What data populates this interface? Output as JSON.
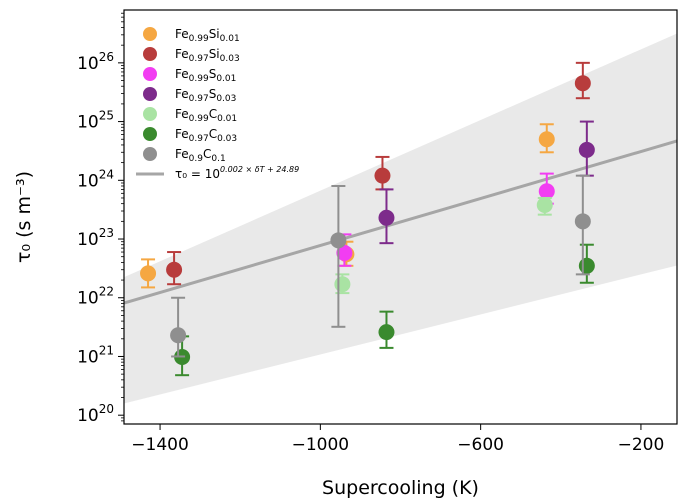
{
  "chart_data": {
    "type": "scatter",
    "xlabel": "Supercooling (K)",
    "ylabel": "τ₀ (s m⁻³)",
    "xlim": [
      -1490,
      -110
    ],
    "ylog_range": [
      19.85,
      26.9
    ],
    "y_scale": "log",
    "x_ticks": [
      -1400,
      -1000,
      -600,
      -200
    ],
    "x_tick_labels": [
      "−1400",
      "−1000",
      "−600",
      "−200"
    ],
    "y_ticks": [
      20,
      21,
      22,
      23,
      24,
      25,
      26
    ],
    "legend_position": "top-left",
    "series": [
      {
        "name": "Fe0.99Si0.01",
        "name_parts": [
          "Fe",
          "0.99",
          "Si",
          "0.01"
        ],
        "color": "#f5a742",
        "points": [
          {
            "x": -1430,
            "y": 2.6e+22,
            "err_low": 1.5e+22,
            "err_high": 4.5e+22
          },
          {
            "x": -935,
            "y": 5.5e+22,
            "err_low": 3.5e+22,
            "err_high": 9e+22
          },
          {
            "x": -435,
            "y": 5e+24,
            "err_low": 3e+24,
            "err_high": 9e+24
          }
        ]
      },
      {
        "name": "Fe0.97Si0.03",
        "name_parts": [
          "Fe",
          "0.97",
          "Si",
          "0.03"
        ],
        "color": "#b83c3c",
        "points": [
          {
            "x": -1365,
            "y": 3e+22,
            "err_low": 1.7e+22,
            "err_high": 6e+22
          },
          {
            "x": -845,
            "y": 1.2e+24,
            "err_low": 7e+23,
            "err_high": 2.5e+24
          },
          {
            "x": -345,
            "y": 4.5e+25,
            "err_low": 2.5e+25,
            "err_high": 1e+26
          }
        ]
      },
      {
        "name": "Fe0.99S0.01",
        "name_parts": [
          "Fe",
          "0.99",
          "S",
          "0.01"
        ],
        "color": "#f23df2",
        "points": [
          {
            "x": -940,
            "y": 5.8e+22,
            "err_low": 3.5e+22,
            "err_high": 1.2e+23
          },
          {
            "x": -435,
            "y": 6.5e+23,
            "err_low": 4e+23,
            "err_high": 1.3e+24
          }
        ]
      },
      {
        "name": "Fe0.97S0.03",
        "name_parts": [
          "Fe",
          "0.97",
          "S",
          "0.03"
        ],
        "color": "#7d2b8b",
        "points": [
          {
            "x": -835,
            "y": 2.3e+23,
            "err_low": 8.5e+22,
            "err_high": 7e+23
          },
          {
            "x": -335,
            "y": 3.3e+24,
            "err_low": 1.2e+24,
            "err_high": 1e+25
          }
        ]
      },
      {
        "name": "Fe0.99C0.01",
        "name_parts": [
          "Fe",
          "0.99",
          "C",
          "0.01"
        ],
        "color": "#a9e3a3",
        "points": [
          {
            "x": -945,
            "y": 1.7e+22,
            "err_low": 1.2e+22,
            "err_high": 2.5e+22
          },
          {
            "x": -440,
            "y": 3.8e+23,
            "err_low": 2.6e+23,
            "err_high": 5e+23
          }
        ]
      },
      {
        "name": "Fe0.97C0.03",
        "name_parts": [
          "Fe",
          "0.97",
          "C",
          "0.03"
        ],
        "color": "#3a8a2e",
        "points": [
          {
            "x": -1345,
            "y": 9.8e+20,
            "err_low": 4.8e+20,
            "err_high": 2.2e+21
          },
          {
            "x": -835,
            "y": 2.6e+21,
            "err_low": 1.4e+21,
            "err_high": 5.8e+21
          },
          {
            "x": -335,
            "y": 3.5e+22,
            "err_low": 1.8e+22,
            "err_high": 8e+22
          }
        ]
      },
      {
        "name": "Fe0.9C0.1",
        "name_parts": [
          "Fe",
          "0.9",
          "C",
          "0.1"
        ],
        "color": "#8f8f8f",
        "points": [
          {
            "x": -1355,
            "y": 2.3e+21,
            "err_low": 1e+21,
            "err_high": 1e+22
          },
          {
            "x": -955,
            "y": 9.5e+22,
            "err_low": 3.2e+21,
            "err_high": 8e+23
          },
          {
            "x": -345,
            "y": 2e+23,
            "err_low": 2.5e+22,
            "err_high": 1.2e+24
          }
        ]
      }
    ],
    "fit": {
      "label_base": "τ₀ = 10",
      "label_exponent": "0.002 × δT + 24.89",
      "color": "#a6a6a6",
      "slope": 0.002,
      "intercept": 24.89,
      "band_color": "#e9e9e9",
      "band_upper": [
        {
          "x": -1490,
          "y": 22.35
        },
        {
          "x": -110,
          "y": 26.5
        }
      ],
      "band_lower": [
        {
          "x": -1490,
          "y": 20.2
        },
        {
          "x": -110,
          "y": 22.55
        }
      ]
    }
  }
}
